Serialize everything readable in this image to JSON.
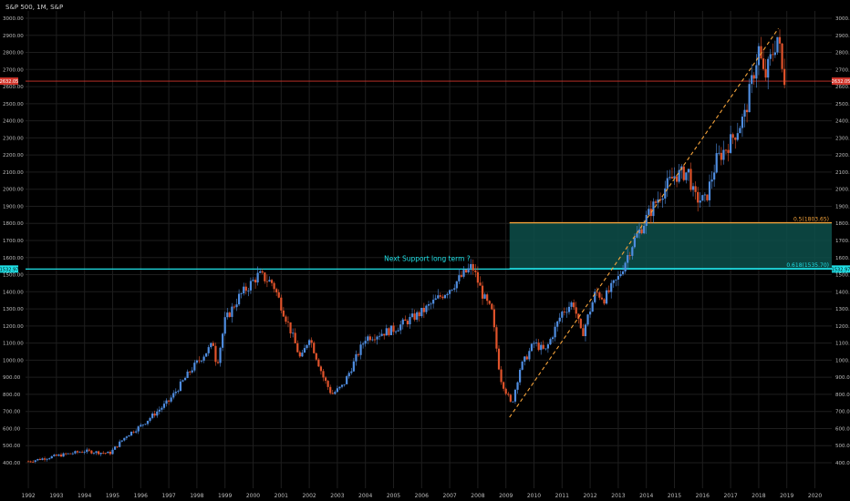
{
  "header": {
    "symbol_label": "S&P 500, 1M, S&P"
  },
  "chart_data": {
    "type": "candlestick",
    "title": "S&P 500, 1M, S&P",
    "x_range": [
      1991.9,
      2020.6
    ],
    "y_range": [
      330,
      3050
    ],
    "x_tick_labels": [
      "1992",
      "1993",
      "1994",
      "1995",
      "1996",
      "1997",
      "1998",
      "1999",
      "2000",
      "2001",
      "2002",
      "2003",
      "2004",
      "2005",
      "2006",
      "2007",
      "2008",
      "2009",
      "2010",
      "2011",
      "2012",
      "2013",
      "2014",
      "2015",
      "2016",
      "2017",
      "2018",
      "2019",
      "2020"
    ],
    "y_tick_labels": [
      "400.00",
      "500.00",
      "600.00",
      "700.00",
      "800.00",
      "900.00",
      "1000.00",
      "1100.00",
      "1200.00",
      "1300.00",
      "1400.00",
      "1500.00",
      "1600.00",
      "1700.00",
      "1800.00",
      "1900.00",
      "2000.00",
      "2100.00",
      "2200.00",
      "2300.00",
      "2400.00",
      "2500.00",
      "2600.00",
      "2700.00",
      "2800.00",
      "2900.00",
      "3000.00"
    ],
    "y_tick_values": [
      400,
      500,
      600,
      700,
      800,
      900,
      1000,
      1100,
      1200,
      1300,
      1400,
      1500,
      1600,
      1700,
      1800,
      1900,
      2000,
      2100,
      2200,
      2300,
      2400,
      2500,
      2600,
      2700,
      2800,
      2900,
      3000
    ],
    "price_series": [
      [
        1992.0,
        408
      ],
      [
        1993.0,
        440
      ],
      [
        1994.0,
        468
      ],
      [
        1994.9,
        455
      ],
      [
        1995.5,
        560
      ],
      [
        1996.0,
        615
      ],
      [
        1997.0,
        760
      ],
      [
        1997.8,
        945
      ],
      [
        1998.6,
        1100
      ],
      [
        1998.7,
        960
      ],
      [
        1999.0,
        1230
      ],
      [
        1999.5,
        1370
      ],
      [
        2000.2,
        1500
      ],
      [
        2000.7,
        1450
      ],
      [
        2001.3,
        1190
      ],
      [
        2001.7,
        1000
      ],
      [
        2002.0,
        1140
      ],
      [
        2002.5,
        900
      ],
      [
        2002.8,
        800
      ],
      [
        2003.2,
        850
      ],
      [
        2004.0,
        1130
      ],
      [
        2005.0,
        1180
      ],
      [
        2006.0,
        1280
      ],
      [
        2007.0,
        1420
      ],
      [
        2007.8,
        1550
      ],
      [
        2008.2,
        1370
      ],
      [
        2008.5,
        1280
      ],
      [
        2008.8,
        900
      ],
      [
        2009.2,
        735
      ],
      [
        2009.5,
        950
      ],
      [
        2010.0,
        1100
      ],
      [
        2010.4,
        1050
      ],
      [
        2011.0,
        1280
      ],
      [
        2011.4,
        1340
      ],
      [
        2011.7,
        1140
      ],
      [
        2012.2,
        1400
      ],
      [
        2012.5,
        1360
      ],
      [
        2013.0,
        1480
      ],
      [
        2013.5,
        1680
      ],
      [
        2014.0,
        1830
      ],
      [
        2014.5,
        1970
      ],
      [
        2015.0,
        2080
      ],
      [
        2015.5,
        2100
      ],
      [
        2015.7,
        1950
      ],
      [
        2016.1,
        1930
      ],
      [
        2016.5,
        2170
      ],
      [
        2017.0,
        2280
      ],
      [
        2017.5,
        2430
      ],
      [
        2018.0,
        2820
      ],
      [
        2018.2,
        2640
      ],
      [
        2018.7,
        2910
      ],
      [
        2018.8,
        2710
      ],
      [
        2018.95,
        2630
      ]
    ],
    "price_line": {
      "label": "2632.05",
      "value": 2632.05,
      "color": "#d1362c"
    },
    "support_line": {
      "label": "1532.97",
      "value": 1532.97,
      "color": "#1fe0e6"
    },
    "fib_levels": [
      {
        "label": "0.5(1803.65)",
        "value": 1803.65,
        "color": "#f5a33a"
      },
      {
        "label": "0.618(1535.70)",
        "value": 1535.7,
        "color": "#1fe0e6"
      }
    ],
    "zone": {
      "x_start": 2009.13,
      "x_end": 2020.6,
      "y_low": 1535.7,
      "y_high": 1803.65,
      "color": "#0d4f4a"
    },
    "trend_line": {
      "from": [
        2009.13,
        666
      ],
      "to": [
        2018.7,
        2940
      ],
      "color": "#f5a33a"
    },
    "annotation": {
      "text": "Next Support long term ?",
      "x": 2006.2,
      "y": 1580,
      "color": "#1fe0e6"
    },
    "colors": {
      "up": "#4f8de0",
      "down": "#e0532b",
      "grid": "#1e1e1e",
      "text": "#c8c8c8"
    }
  }
}
